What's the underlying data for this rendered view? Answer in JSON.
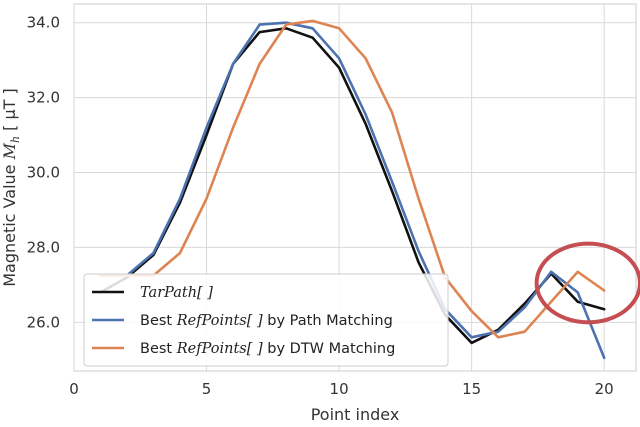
{
  "chart_data": {
    "type": "line",
    "xlabel": "Point index",
    "ylabel": "Magnetic Value M_h [ μT ]",
    "ylabel_parts": {
      "main": "Magnetic Value ",
      "var": "M",
      "sub": "h",
      "unit": " [ μT ]"
    },
    "xlim": [
      0,
      21.2
    ],
    "ylim": [
      24.7,
      34.5
    ],
    "x_ticks": [
      0,
      5,
      10,
      15,
      20
    ],
    "y_ticks": [
      26.0,
      28.0,
      30.0,
      32.0,
      34.0
    ],
    "x_tick_labels": [
      "0",
      "5",
      "10",
      "15",
      "20"
    ],
    "y_tick_labels": [
      "26.0",
      "28.0",
      "30.0",
      "32.0",
      "34.0"
    ],
    "grid": true,
    "legend_position": "lower-left",
    "x": [
      1,
      2,
      3,
      4,
      5,
      6,
      7,
      8,
      9,
      10,
      11,
      12,
      13,
      14,
      15,
      16,
      17,
      18,
      19,
      20
    ],
    "series": [
      {
        "name": "TarPath[ ]",
        "legend_prefix": "",
        "legend_var": "TarPath[ ]",
        "legend_suffix": "",
        "color": "#111111",
        "values": [
          26.8,
          27.2,
          27.8,
          29.2,
          31.0,
          32.9,
          33.75,
          33.85,
          33.6,
          32.8,
          31.3,
          29.5,
          27.6,
          26.2,
          25.45,
          25.8,
          26.5,
          27.3,
          26.55,
          26.35
        ]
      },
      {
        "name": "Best RefPoints[ ] by Path Matching",
        "legend_prefix": "Best ",
        "legend_var": "RefPoints[ ]",
        "legend_suffix": " by Path Matching",
        "color": "#4c72b0",
        "values": [
          27.25,
          27.25,
          27.85,
          29.3,
          31.2,
          32.9,
          33.95,
          34.0,
          33.85,
          33.05,
          31.55,
          29.75,
          27.9,
          26.35,
          25.6,
          25.75,
          26.4,
          27.35,
          26.8,
          25.05
        ]
      },
      {
        "name": "Best RefPoints[ ] by DTW Matching",
        "legend_prefix": "Best ",
        "legend_var": "RefPoints[ ]",
        "legend_suffix": " by DTW Matching",
        "color": "#dd8452",
        "values": [
          27.25,
          27.25,
          27.25,
          27.85,
          29.3,
          31.2,
          32.9,
          33.95,
          34.05,
          33.85,
          33.05,
          31.6,
          29.3,
          27.2,
          26.3,
          25.6,
          25.75,
          26.55,
          27.35,
          26.85
        ]
      }
    ],
    "annotation": {
      "shape": "ellipse",
      "color": "#c44e52",
      "center": [
        19.4,
        27.05
      ],
      "radius_x": 1.95,
      "radius_y": 1.05
    }
  }
}
